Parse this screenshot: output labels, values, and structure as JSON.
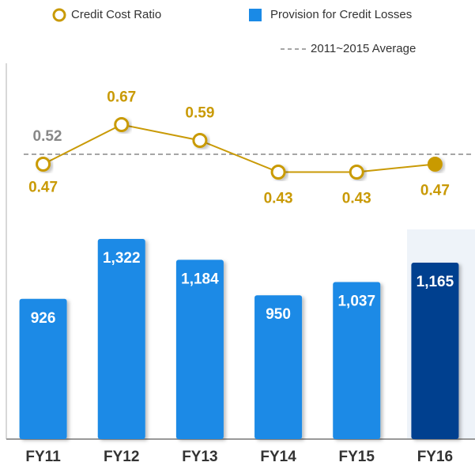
{
  "chart_data": {
    "type": "combo",
    "categories": [
      "FY11",
      "FY12",
      "FY13",
      "FY14",
      "FY15",
      "FY16"
    ],
    "series": [
      {
        "name": "Provision for Credit Losses",
        "color": "#1a8ae6",
        "highlight_color": "#003f8f",
        "values": [
          926,
          1322,
          1184,
          950,
          1037,
          1165
        ],
        "value_labels": [
          "926",
          "1,322",
          "1,184",
          "950",
          "1,037",
          "1,165"
        ]
      },
      {
        "name": "Credit Cost Ratio",
        "color": "#c99a06",
        "axis": "y2",
        "values": [
          0.47,
          0.67,
          0.59,
          0.43,
          0.43,
          0.47
        ]
      }
    ],
    "average": {
      "name": "2011~2015 Average",
      "value": 0.52,
      "color": "#888888"
    },
    "highlight": 5,
    "ylim": [
      0,
      2900
    ],
    "y2lim": [
      -0.92,
      1.3
    ]
  }
}
